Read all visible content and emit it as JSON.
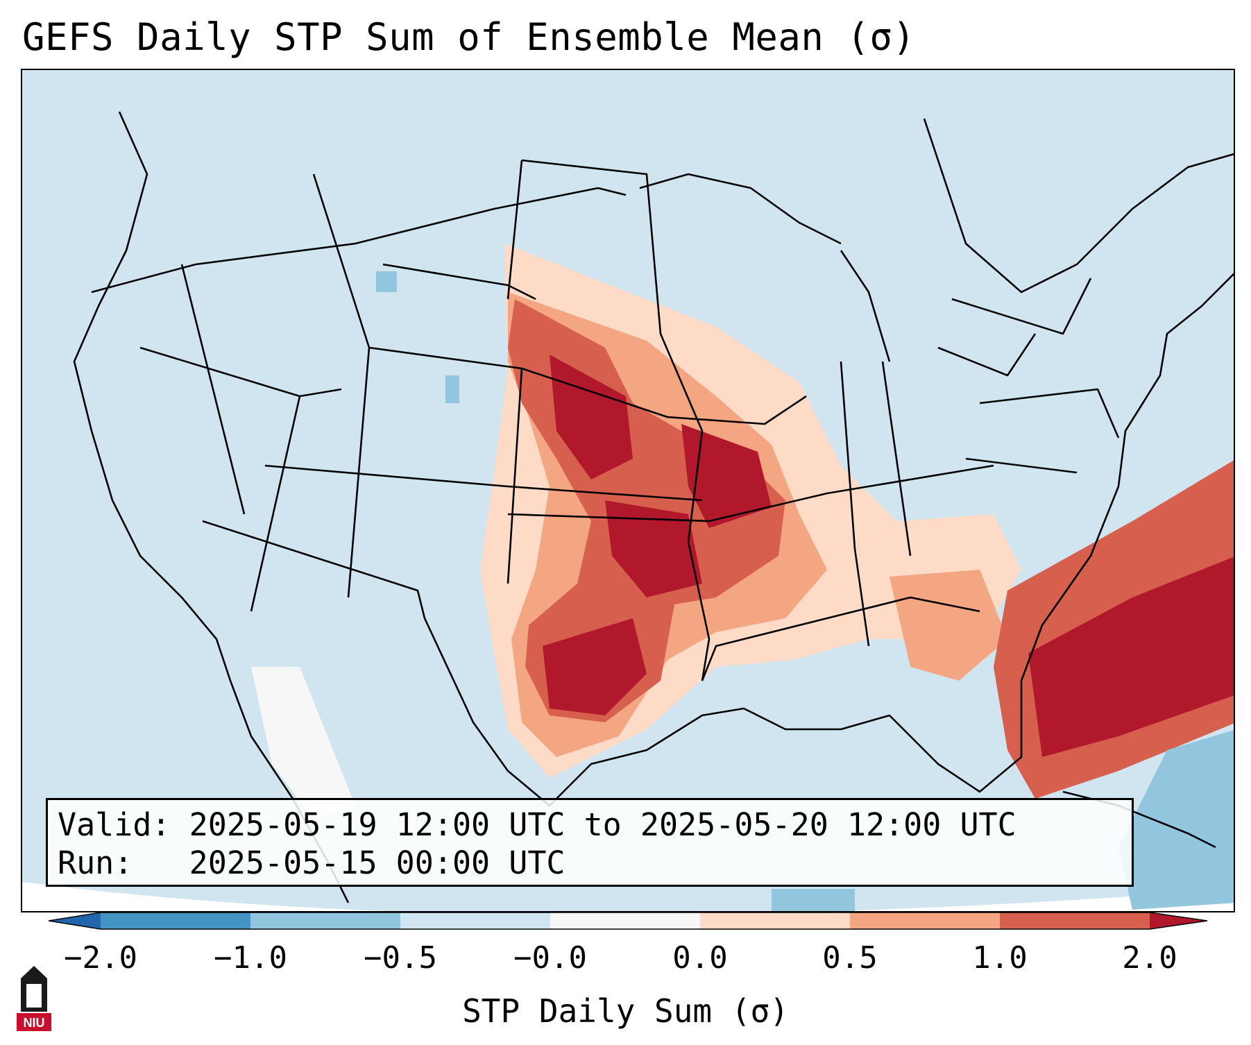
{
  "title": "GEFS Daily STP Sum of Ensemble Mean (σ)",
  "info": {
    "valid_label": "Valid:",
    "valid_value": "2025-05-19 12:00 UTC to 2025-05-20 12:00 UTC",
    "run_label": "Run:",
    "run_value": "2025-05-15 00:00 UTC"
  },
  "colorbar": {
    "label": "STP Daily Sum (σ)",
    "ticks": [
      "−2.0",
      "−1.0",
      "−0.5",
      "−0.0",
      "0.0",
      "0.5",
      "1.0",
      "2.0"
    ],
    "colors": [
      "#2166ac",
      "#4393c3",
      "#92c5de",
      "#d1e5f0",
      "#f7f7f7",
      "#fddbc7",
      "#f4a582",
      "#d6604d",
      "#b2182b"
    ],
    "background_color": "#d1e5f0"
  },
  "logo": {
    "text": "NIU",
    "icon": "university-tower-icon",
    "color": "#c8102e"
  }
}
